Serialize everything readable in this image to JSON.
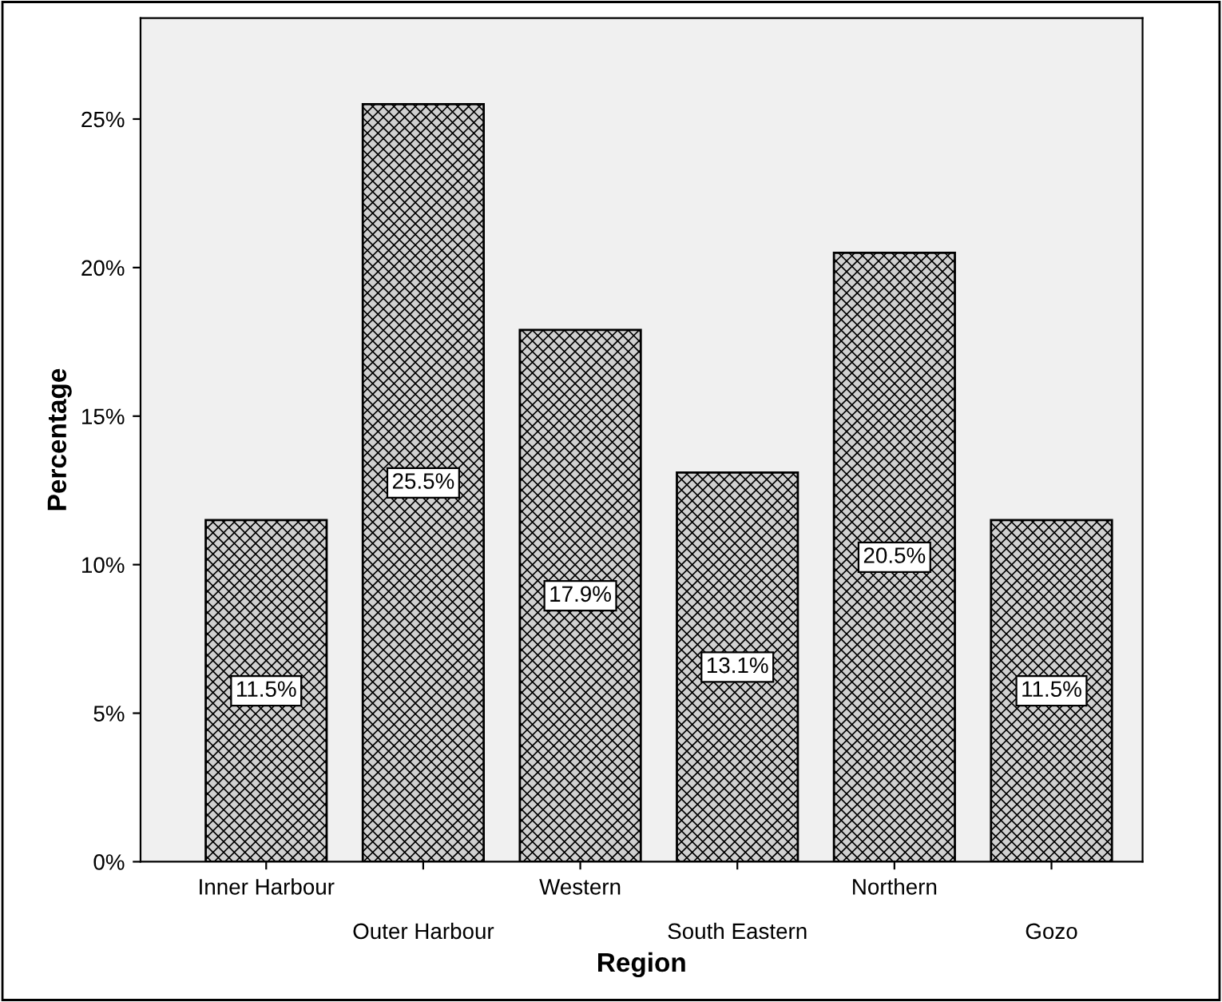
{
  "chart_data": {
    "type": "bar",
    "xlabel": "Region",
    "ylabel": "Percentage",
    "categories": [
      "Inner Harbour",
      "Outer Harbour",
      "Western",
      "South Eastern",
      "Northern",
      "Gozo"
    ],
    "values": [
      11.5,
      25.5,
      17.9,
      13.1,
      20.5,
      11.5
    ],
    "value_labels": [
      "11.5%",
      "25.5%",
      "17.9%",
      "13.1%",
      "20.5%",
      "11.5%"
    ],
    "color": "#000000",
    "ylim": [
      0,
      28.4
    ],
    "yticks": [
      {
        "value": 0,
        "label": "0%"
      },
      {
        "value": 5,
        "label": "5%"
      },
      {
        "value": 10,
        "label": "10%"
      },
      {
        "value": 15,
        "label": "15%"
      },
      {
        "value": 20,
        "label": "20%"
      },
      {
        "value": 25,
        "label": "25%"
      }
    ],
    "grid": false,
    "legend": false
  }
}
